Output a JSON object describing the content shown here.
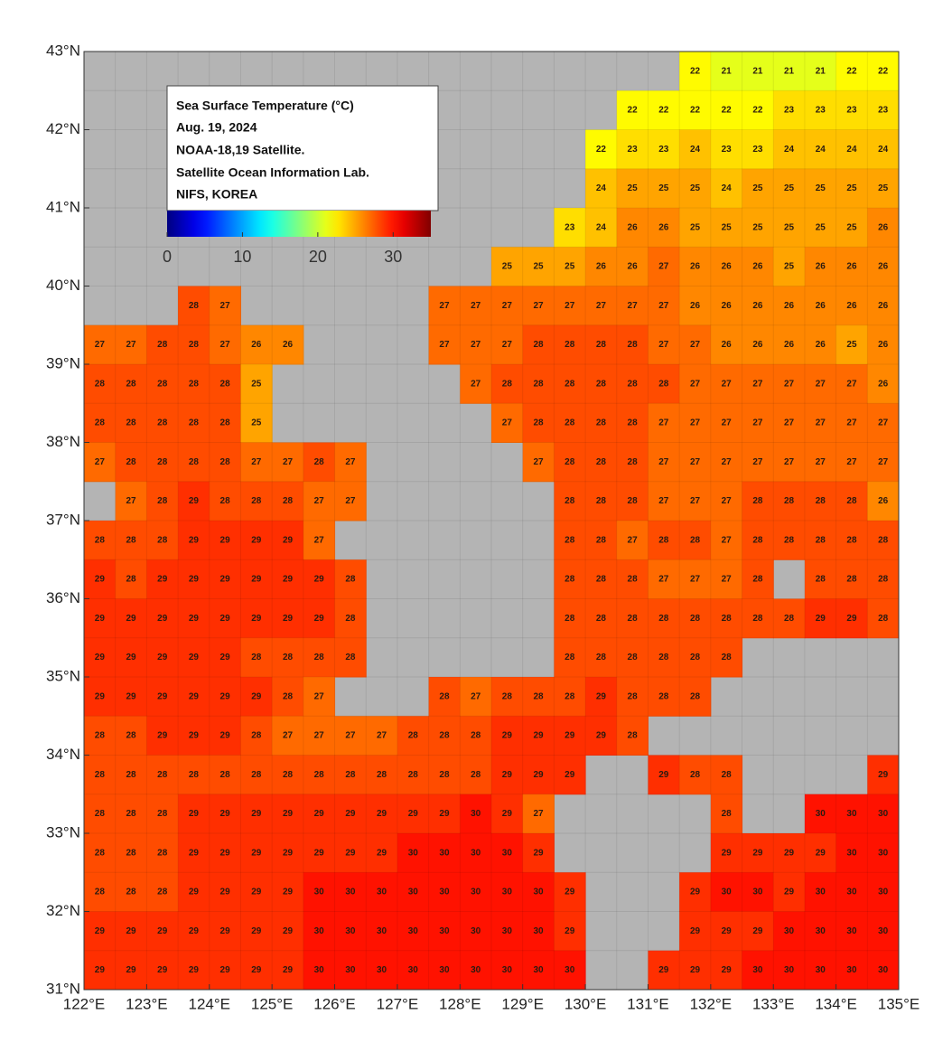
{
  "chart_data": {
    "type": "map",
    "legend": {
      "title": "Sea Surface Temperature (°C)",
      "lines": [
        "Aug. 19, 2024",
        "NOAA-18,19 Satellite.",
        "Satellite Ocean Information Lab.",
        "NIFS, KOREA"
      ]
    },
    "colorbar": {
      "lim": [
        0,
        35
      ],
      "ticks": [
        0,
        10,
        20,
        30
      ]
    },
    "xlim": [
      122,
      135
    ],
    "ylim": [
      31,
      43
    ],
    "xticks": [
      {
        "value": 122,
        "label": "122°E"
      },
      {
        "value": 123,
        "label": "123°E"
      },
      {
        "value": 124,
        "label": "124°E"
      },
      {
        "value": 125,
        "label": "125°E"
      },
      {
        "value": 126,
        "label": "126°E"
      },
      {
        "value": 127,
        "label": "127°E"
      },
      {
        "value": 128,
        "label": "128°E"
      },
      {
        "value": 129,
        "label": "129°E"
      },
      {
        "value": 130,
        "label": "130°E"
      },
      {
        "value": 131,
        "label": "131°E"
      },
      {
        "value": 132,
        "label": "132°E"
      },
      {
        "value": 133,
        "label": "133°E"
      },
      {
        "value": 134,
        "label": "134°E"
      },
      {
        "value": 135,
        "label": "135°E"
      }
    ],
    "yticks": [
      {
        "value": 31,
        "label": "31°N"
      },
      {
        "value": 32,
        "label": "32°N"
      },
      {
        "value": 33,
        "label": "33°N"
      },
      {
        "value": 34,
        "label": "34°N"
      },
      {
        "value": 35,
        "label": "35°N"
      },
      {
        "value": 36,
        "label": "36°N"
      },
      {
        "value": 37,
        "label": "37°N"
      },
      {
        "value": 38,
        "label": "38°N"
      },
      {
        "value": 39,
        "label": "39°N"
      },
      {
        "value": 40,
        "label": "40°N"
      },
      {
        "value": 41,
        "label": "41°N"
      },
      {
        "value": 42,
        "label": "42°N"
      },
      {
        "value": 43,
        "label": "43°N"
      }
    ],
    "values": [
      [
        null,
        null,
        null,
        null,
        null,
        null,
        null,
        null,
        null,
        null,
        null,
        null,
        null,
        null,
        null,
        null,
        null,
        null,
        null,
        22,
        21,
        21,
        21,
        21,
        22,
        22
      ],
      [
        null,
        null,
        null,
        null,
        null,
        null,
        null,
        null,
        null,
        null,
        null,
        null,
        null,
        null,
        null,
        null,
        null,
        22,
        22,
        22,
        22,
        22,
        23,
        23,
        23,
        23
      ],
      [
        null,
        null,
        null,
        null,
        null,
        null,
        null,
        null,
        null,
        null,
        null,
        null,
        null,
        null,
        null,
        null,
        22,
        23,
        23,
        24,
        23,
        23,
        24,
        24,
        24,
        24
      ],
      [
        null,
        null,
        null,
        null,
        null,
        null,
        null,
        null,
        null,
        null,
        null,
        null,
        null,
        null,
        null,
        null,
        24,
        25,
        25,
        25,
        24,
        25,
        25,
        25,
        25,
        25
      ],
      [
        null,
        null,
        null,
        null,
        null,
        null,
        null,
        null,
        null,
        null,
        null,
        null,
        null,
        null,
        null,
        23,
        24,
        26,
        26,
        25,
        25,
        25,
        25,
        25,
        25,
        26
      ],
      [
        null,
        null,
        null,
        null,
        null,
        null,
        null,
        null,
        null,
        null,
        null,
        null,
        null,
        25,
        25,
        25,
        26,
        26,
        27,
        26,
        26,
        26,
        25,
        26,
        26,
        26
      ],
      [
        null,
        null,
        null,
        28,
        27,
        null,
        null,
        null,
        null,
        null,
        null,
        27,
        27,
        27,
        27,
        27,
        27,
        27,
        27,
        26,
        26,
        26,
        26,
        26,
        26,
        26
      ],
      [
        27,
        27,
        28,
        28,
        27,
        26,
        26,
        null,
        null,
        null,
        null,
        27,
        27,
        27,
        28,
        28,
        28,
        28,
        27,
        27,
        26,
        26,
        26,
        26,
        25,
        26
      ],
      [
        28,
        28,
        28,
        28,
        28,
        25,
        null,
        null,
        null,
        null,
        null,
        null,
        27,
        28,
        28,
        28,
        28,
        28,
        28,
        27,
        27,
        27,
        27,
        27,
        27,
        26
      ],
      [
        28,
        28,
        28,
        28,
        28,
        25,
        null,
        null,
        null,
        null,
        null,
        null,
        null,
        27,
        28,
        28,
        28,
        28,
        27,
        27,
        27,
        27,
        27,
        27,
        27,
        27
      ],
      [
        27,
        28,
        28,
        28,
        28,
        27,
        27,
        28,
        27,
        null,
        null,
        null,
        null,
        null,
        27,
        28,
        28,
        28,
        27,
        27,
        27,
        27,
        27,
        27,
        27,
        27
      ],
      [
        null,
        27,
        28,
        29,
        28,
        28,
        28,
        27,
        27,
        null,
        null,
        null,
        null,
        null,
        null,
        28,
        28,
        28,
        27,
        27,
        27,
        28,
        28,
        28,
        28,
        26
      ],
      [
        28,
        28,
        28,
        29,
        29,
        29,
        29,
        27,
        null,
        null,
        null,
        null,
        null,
        null,
        null,
        28,
        28,
        27,
        28,
        28,
        27,
        28,
        28,
        28,
        28,
        28
      ],
      [
        29,
        28,
        29,
        29,
        29,
        29,
        29,
        29,
        28,
        null,
        null,
        null,
        null,
        null,
        null,
        28,
        28,
        28,
        27,
        27,
        27,
        28,
        null,
        28,
        28,
        28
      ],
      [
        29,
        29,
        29,
        29,
        29,
        29,
        29,
        29,
        28,
        null,
        null,
        null,
        null,
        null,
        null,
        28,
        28,
        28,
        28,
        28,
        28,
        28,
        28,
        29,
        29,
        28
      ],
      [
        29,
        29,
        29,
        29,
        29,
        28,
        28,
        28,
        28,
        null,
        null,
        null,
        null,
        null,
        null,
        28,
        28,
        28,
        28,
        28,
        28,
        null,
        null,
        null,
        null,
        null
      ],
      [
        29,
        29,
        29,
        29,
        29,
        29,
        28,
        27,
        null,
        null,
        null,
        28,
        27,
        28,
        28,
        28,
        29,
        28,
        28,
        28,
        null,
        null,
        null,
        null,
        null,
        null
      ],
      [
        28,
        28,
        29,
        29,
        29,
        28,
        27,
        27,
        27,
        27,
        28,
        28,
        28,
        29,
        29,
        29,
        29,
        28,
        null,
        null,
        null,
        null,
        null,
        null,
        null,
        null
      ],
      [
        28,
        28,
        28,
        28,
        28,
        28,
        28,
        28,
        28,
        28,
        28,
        28,
        28,
        29,
        29,
        29,
        null,
        null,
        29,
        28,
        28,
        null,
        null,
        null,
        null,
        29
      ],
      [
        28,
        28,
        28,
        29,
        29,
        29,
        29,
        29,
        29,
        29,
        29,
        29,
        30,
        29,
        27,
        null,
        null,
        null,
        null,
        null,
        28,
        null,
        null,
        30,
        30,
        30
      ],
      [
        28,
        28,
        28,
        29,
        29,
        29,
        29,
        29,
        29,
        29,
        30,
        30,
        30,
        30,
        29,
        null,
        null,
        null,
        null,
        null,
        29,
        29,
        29,
        29,
        30,
        30
      ],
      [
        28,
        28,
        28,
        29,
        29,
        29,
        29,
        30,
        30,
        30,
        30,
        30,
        30,
        30,
        30,
        29,
        null,
        null,
        null,
        29,
        30,
        30,
        29,
        30,
        30,
        30
      ],
      [
        29,
        29,
        29,
        29,
        29,
        29,
        29,
        30,
        30,
        30,
        30,
        30,
        30,
        30,
        30,
        29,
        null,
        null,
        null,
        29,
        29,
        29,
        30,
        30,
        30,
        30
      ],
      [
        29,
        29,
        29,
        29,
        29,
        29,
        29,
        30,
        30,
        30,
        30,
        30,
        30,
        30,
        30,
        30,
        null,
        null,
        29,
        29,
        29,
        30,
        30,
        30,
        30,
        30
      ]
    ]
  }
}
